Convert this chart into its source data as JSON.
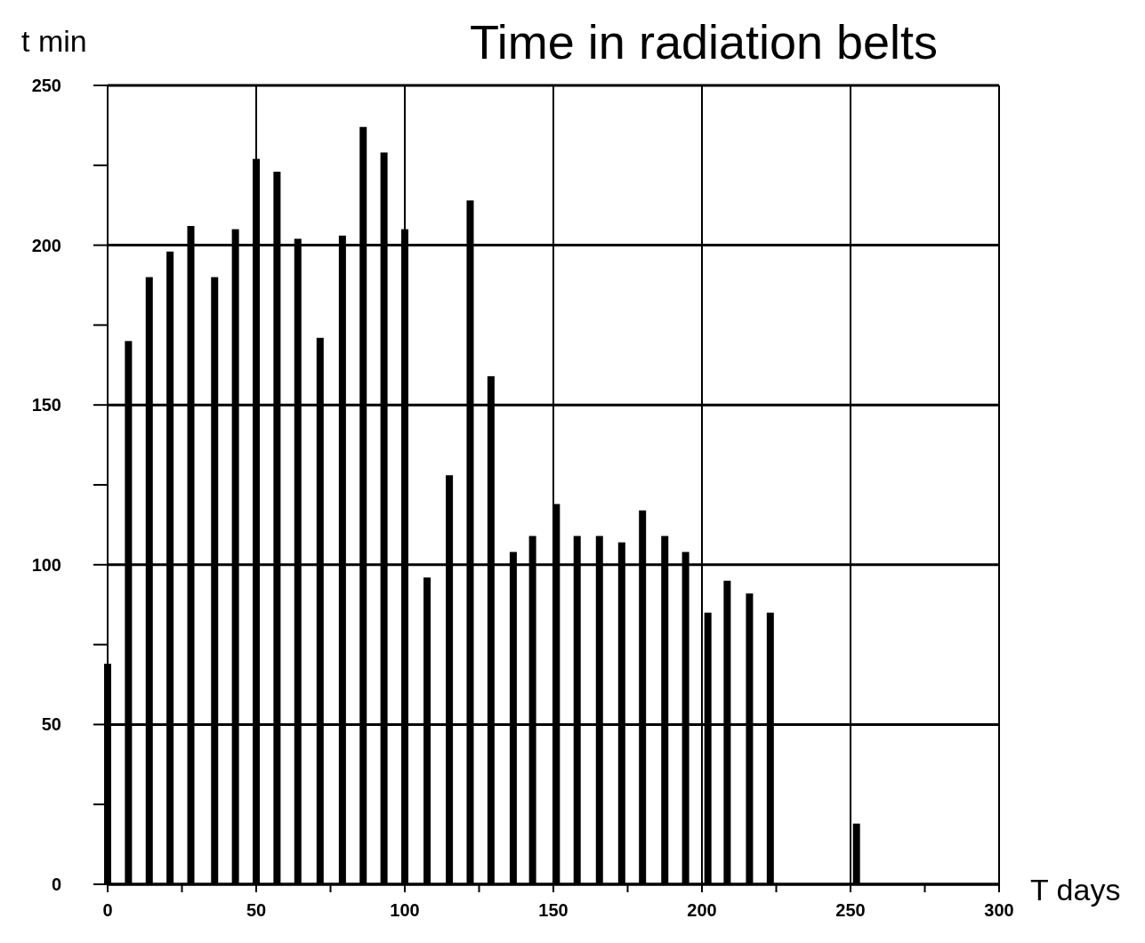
{
  "chart_data": {
    "type": "bar",
    "title": "Time in radiation belts",
    "xlabel": "T days",
    "ylabel": "t min",
    "x": [
      0,
      7,
      14,
      21,
      28,
      36,
      43,
      50,
      57,
      64,
      71.5,
      79,
      86,
      93,
      100,
      107.5,
      115,
      122,
      129,
      136.5,
      143,
      151,
      158,
      165.5,
      173,
      180,
      187.5,
      194.5,
      202,
      208.5,
      216,
      223,
      252
    ],
    "values": [
      69,
      170,
      190,
      198,
      206,
      190,
      205,
      227,
      223,
      202,
      171,
      203,
      237,
      229,
      205,
      96,
      128,
      214,
      159,
      104,
      109,
      119,
      109,
      109,
      107,
      117,
      109,
      104,
      85,
      95,
      91,
      85,
      19
    ],
    "color": "#000000",
    "xlim": [
      0,
      300
    ],
    "ylim": [
      0,
      250
    ],
    "xticks": [
      0,
      {
        "value": 25,
        "label": null
      },
      50,
      {
        "value": 75,
        "label": null
      },
      100,
      {
        "value": 125,
        "label": null
      },
      150,
      {
        "value": 175,
        "label": null
      },
      200,
      {
        "value": 225,
        "label": null
      },
      250,
      {
        "value": 275,
        "label": null
      },
      300
    ],
    "yticks": [
      0,
      {
        "value": 25,
        "label": null
      },
      50,
      {
        "value": 75,
        "label": null
      },
      100,
      {
        "value": 125,
        "label": null
      },
      150,
      {
        "value": 175,
        "label": null
      },
      200,
      {
        "value": 225,
        "label": null
      },
      250
    ],
    "grid": true
  }
}
